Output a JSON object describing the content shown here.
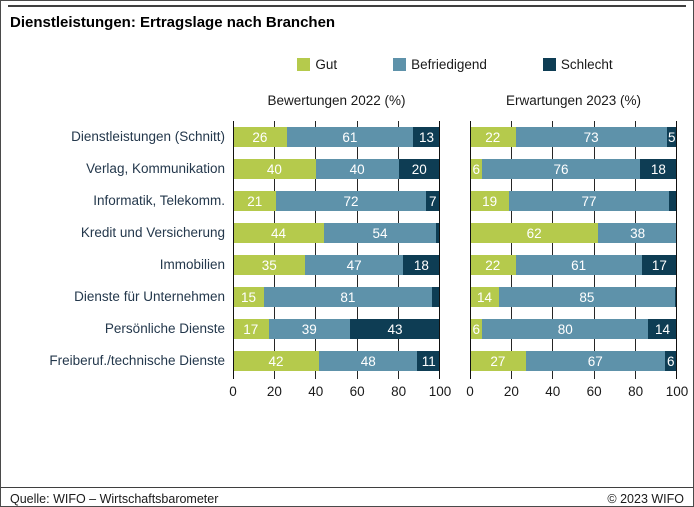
{
  "header": {
    "title": "Dienstleistungen: Ertragslage nach Branchen"
  },
  "chart_data": {
    "type": "bar",
    "subtype": "horizontal-stacked",
    "title": "Dienstleistungen: Ertragslage nach Branchen",
    "unit": "%",
    "xlim": [
      0,
      100
    ],
    "xticks": [
      0,
      20,
      40,
      60,
      80,
      100
    ],
    "min_label_value": 5,
    "legend": [
      {
        "label": "Gut",
        "color": "#b5ca4c"
      },
      {
        "label": "Befriedigend",
        "color": "#5e92aa"
      },
      {
        "label": "Schlecht",
        "color": "#0e3d54"
      }
    ],
    "categories": [
      "Dienstleistungen (Schnitt)",
      "Verlag, Kommunikation",
      "Informatik, Telekomm.",
      "Kredit und Versicherung",
      "Immobilien",
      "Dienste für Unternehmen",
      "Persönliche Dienste",
      "Freiberuf./technische Dienste"
    ],
    "panels": [
      {
        "title": "Bewertungen 2022 (%)",
        "series_order": [
          "Gut",
          "Befriedigend",
          "Schlecht"
        ],
        "rows": [
          [
            26,
            61,
            13
          ],
          [
            40,
            40,
            20
          ],
          [
            21,
            72,
            7
          ],
          [
            44,
            54,
            2
          ],
          [
            35,
            47,
            18
          ],
          [
            15,
            81,
            4
          ],
          [
            17,
            39,
            43
          ],
          [
            42,
            48,
            11
          ]
        ]
      },
      {
        "title": "Erwartungen 2023 (%)",
        "series_order": [
          "Gut",
          "Befriedigend",
          "Schlecht"
        ],
        "rows": [
          [
            22,
            73,
            5
          ],
          [
            6,
            76,
            18
          ],
          [
            19,
            77,
            4
          ],
          [
            62,
            38,
            0
          ],
          [
            22,
            61,
            17
          ],
          [
            14,
            85,
            1
          ],
          [
            6,
            80,
            14
          ],
          [
            27,
            67,
            6
          ]
        ]
      }
    ]
  },
  "footer": {
    "source": "Quelle: WIFO – Wirtschaftsbarometer",
    "copyright": "© 2023 WIFO"
  }
}
